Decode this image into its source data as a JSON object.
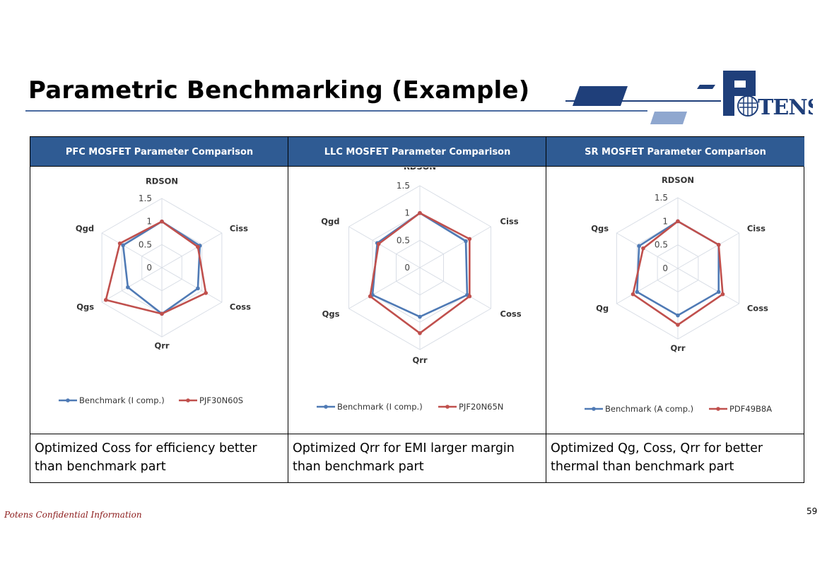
{
  "title": "Parametric Benchmarking (Example)",
  "logo_text": "POTENS",
  "footer": "Potens Confidential Information",
  "page_number": "59",
  "colors": {
    "benchmark": "#4f7ab5",
    "part": "#c0504d",
    "header": "#2f5b93",
    "grid": "#d9dee6"
  },
  "columns": [
    {
      "header": "PFC MOSFET Parameter Comparison",
      "description": "Optimized Coss for efficiency better than benchmark part"
    },
    {
      "header": "LLC MOSFET Parameter Comparison",
      "description": "Optimized Qrr for EMI larger margin than benchmark part"
    },
    {
      "header": "SR MOSFET Parameter Comparison",
      "description": "Optimized  Qg, Coss, Qrr for better thermal than benchmark part"
    }
  ],
  "chart_data": [
    {
      "type": "radar",
      "axes": [
        "RDSON",
        "Ciss",
        "Coss",
        "Qrr",
        "Qgs",
        "Qgd"
      ],
      "rmax": 1.5,
      "ticks": [
        "0",
        "0.5",
        "1",
        "1.5"
      ],
      "tick_values": [
        0,
        0.5,
        1,
        1.5
      ],
      "series": [
        {
          "name": "Benchmark (I comp.)",
          "values": [
            1.0,
            0.95,
            0.9,
            1.0,
            0.85,
            0.97
          ]
        },
        {
          "name": "PJF30N60S",
          "values": [
            1.0,
            0.9,
            1.1,
            1.0,
            1.4,
            1.05
          ]
        }
      ]
    },
    {
      "type": "radar",
      "axes": [
        "RDSON",
        "Ciss",
        "Coss",
        "Qrr",
        "Qgs",
        "Qgd"
      ],
      "rmax": 1.5,
      "ticks": [
        "0",
        "0.5",
        "1",
        "1.5"
      ],
      "tick_values": [
        0,
        0.5,
        1,
        1.5
      ],
      "series": [
        {
          "name": "Benchmark (I comp.)",
          "values": [
            1.0,
            0.97,
            1.0,
            0.9,
            1.0,
            0.9
          ]
        },
        {
          "name": "PJF20N65N",
          "values": [
            1.0,
            1.05,
            1.05,
            1.2,
            1.05,
            0.87
          ]
        }
      ]
    },
    {
      "type": "radar",
      "axes": [
        "RDSON",
        "Ciss",
        "Coss",
        "Qrr",
        "Qg",
        "Qgs"
      ],
      "rmax": 1.5,
      "ticks": [
        "0",
        "0.5",
        "1",
        "1.5"
      ],
      "tick_values": [
        0,
        0.5,
        1,
        1.5
      ],
      "series": [
        {
          "name": "Benchmark (A comp.)",
          "values": [
            1.0,
            1.0,
            1.0,
            1.0,
            1.0,
            0.95
          ]
        },
        {
          "name": "PDF49B8A",
          "values": [
            1.0,
            1.0,
            1.1,
            1.2,
            1.1,
            0.85
          ]
        }
      ]
    }
  ]
}
